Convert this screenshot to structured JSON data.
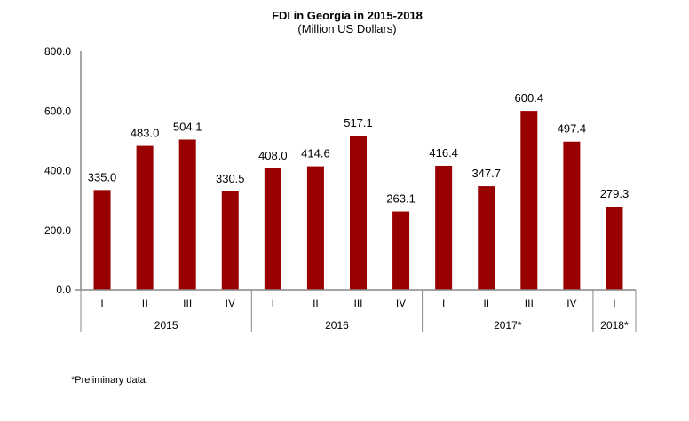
{
  "chart_data": {
    "type": "bar",
    "title": "FDI in Georgia in 2015-2018",
    "subtitle": "(Million US Dollars)",
    "xlabel": "",
    "ylabel": "",
    "ylim": [
      0,
      800
    ],
    "yticks": [
      "0.0",
      "200.0",
      "400.0",
      "600.0",
      "800.0"
    ],
    "ytick_values": [
      0,
      200,
      400,
      600,
      800
    ],
    "grid": false,
    "legend": "none",
    "bar_color": "#990000",
    "categories": [
      "I",
      "II",
      "III",
      "IV",
      "I",
      "II",
      "III",
      "IV",
      "I",
      "II",
      "III",
      "IV",
      "I"
    ],
    "groups": [
      {
        "label": "2015",
        "count": 4
      },
      {
        "label": "2016",
        "count": 4
      },
      {
        "label": "2017*",
        "count": 4
      },
      {
        "label": "2018*",
        "count": 1
      }
    ],
    "values": [
      335.0,
      483.0,
      504.1,
      330.5,
      408.0,
      414.6,
      517.1,
      263.1,
      416.4,
      347.7,
      600.4,
      497.4,
      279.3
    ],
    "data_labels": [
      "335.0",
      "483.0",
      "504.1",
      "330.5",
      "408.0",
      "414.6",
      "517.1",
      "263.1",
      "416.4",
      "347.7",
      "600.4",
      "497.4",
      "279.3"
    ]
  },
  "footnote": "*Preliminary data."
}
